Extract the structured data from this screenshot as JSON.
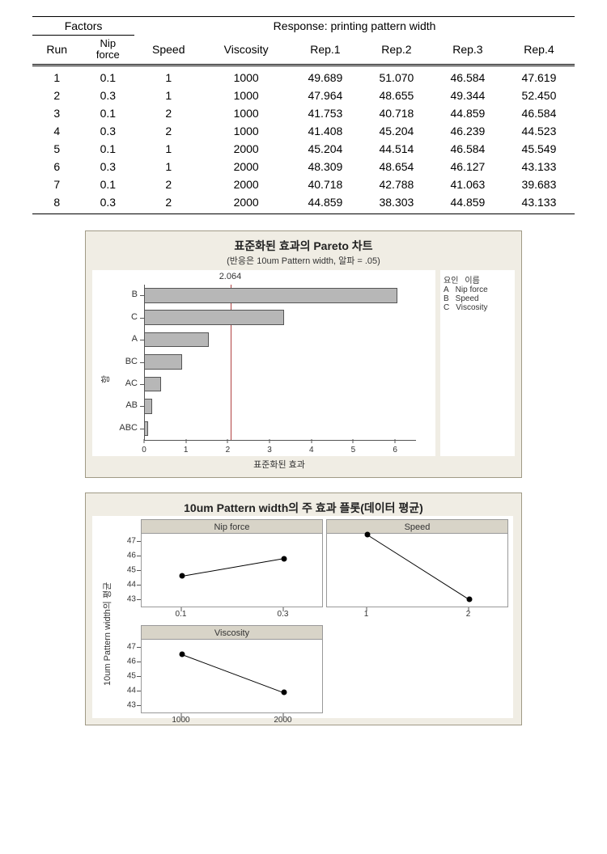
{
  "table": {
    "header_group_left": "Factors",
    "header_group_right": "Response: printing pattern width",
    "columns": [
      "Run",
      "Nip\nforce",
      "Speed",
      "Viscosity",
      "Rep.1",
      "Rep.2",
      "Rep.3",
      "Rep.4"
    ],
    "rows": [
      [
        "1",
        "0.1",
        "1",
        "1000",
        "49.689",
        "51.070",
        "46.584",
        "47.619"
      ],
      [
        "2",
        "0.3",
        "1",
        "1000",
        "47.964",
        "48.655",
        "49.344",
        "52.450"
      ],
      [
        "3",
        "0.1",
        "2",
        "1000",
        "41.753",
        "40.718",
        "44.859",
        "46.584"
      ],
      [
        "4",
        "0.3",
        "2",
        "1000",
        "41.408",
        "45.204",
        "46.239",
        "44.523"
      ],
      [
        "5",
        "0.1",
        "1",
        "2000",
        "45.204",
        "44.514",
        "46.584",
        "45.549"
      ],
      [
        "6",
        "0.3",
        "1",
        "2000",
        "48.309",
        "48.654",
        "46.127",
        "43.133"
      ],
      [
        "7",
        "0.1",
        "2",
        "2000",
        "40.718",
        "42.788",
        "41.063",
        "39.683"
      ],
      [
        "8",
        "0.3",
        "2",
        "2000",
        "44.859",
        "38.303",
        "44.859",
        "43.133"
      ]
    ]
  },
  "pareto": {
    "type": "bar",
    "title": "표준화된 효과의 Pareto 차트",
    "subtitle": "(반응은 10um Pattern width, 알파 =   .05)",
    "ylabel": "항",
    "xlabel": "표준화된 효과",
    "reference_value": 2.064,
    "xlim": [
      0,
      6.5
    ],
    "xticks": [
      0,
      1,
      2,
      3,
      4,
      5,
      6
    ],
    "categories": [
      "B",
      "C",
      "A",
      "BC",
      "AC",
      "AB",
      "ABC"
    ],
    "values": [
      6.05,
      3.35,
      1.55,
      0.9,
      0.4,
      0.2,
      0.1
    ],
    "bar_color": "#b7b7b7",
    "bar_border": "#555555",
    "ref_line_color": "#b04040",
    "background": "#f0ede4",
    "plot_background": "#ffffff",
    "legend": {
      "header": [
        "요인",
        "이름"
      ],
      "rows": [
        [
          "A",
          "Nip force"
        ],
        [
          "B",
          "Speed"
        ],
        [
          "C",
          "Viscosity"
        ]
      ]
    }
  },
  "main_effects": {
    "type": "line",
    "title": "10um Pattern width의 주 효과 플롯(데이터 평균)",
    "ylabel": "10um Pattern width의 평균",
    "background": "#f0ede4",
    "panel_header_bg": "#d8d4c8",
    "ylim": [
      42.5,
      47.5
    ],
    "yticks": [
      43,
      44,
      45,
      46,
      47
    ],
    "panels": [
      {
        "name": "Nip force",
        "x": [
          "0.1",
          "0.3"
        ],
        "y": [
          44.6,
          45.8
        ]
      },
      {
        "name": "Speed",
        "x": [
          "1",
          "2"
        ],
        "y": [
          47.4,
          43.0
        ]
      },
      {
        "name": "Viscosity",
        "x": [
          "1000",
          "2000"
        ],
        "y": [
          46.5,
          43.9
        ]
      }
    ],
    "marker_color": "#000000",
    "line_color": "#000000"
  }
}
